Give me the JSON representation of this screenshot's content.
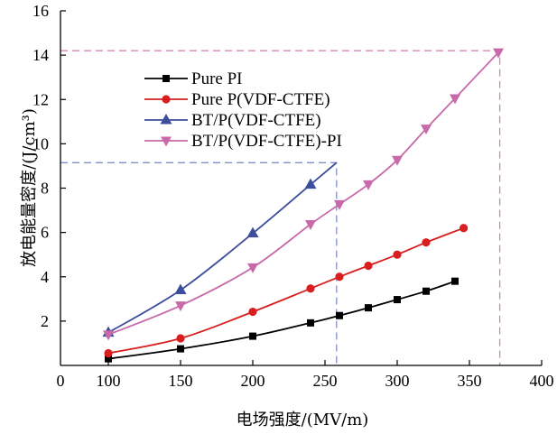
{
  "chart_data": {
    "type": "line",
    "title": "",
    "xlabel": "电场强度/(MV/m)",
    "ylabel": "放电能量密度/(J/cm³)",
    "xlim": [
      0,
      400
    ],
    "ylim": [
      0,
      16
    ],
    "xticks": [
      0,
      100,
      150,
      200,
      250,
      300,
      350,
      400
    ],
    "yticks": [
      2,
      4,
      6,
      8,
      10,
      12,
      14,
      16
    ],
    "grid": false,
    "legend": "top-left",
    "series": [
      {
        "name": "Pure PI",
        "color": "#000000",
        "marker": "square",
        "x": [
          100,
          150,
          200,
          240,
          260,
          280,
          300,
          320,
          340
        ],
        "y": [
          0.3,
          0.75,
          1.32,
          1.92,
          2.25,
          2.6,
          2.97,
          3.35,
          3.8
        ]
      },
      {
        "name": "Pure P(VDF-CTFE)",
        "color": "#d81e1e",
        "marker": "circle",
        "x": [
          100,
          150,
          200,
          240,
          260,
          280,
          300,
          320,
          346
        ],
        "y": [
          0.55,
          1.22,
          2.42,
          3.47,
          4.0,
          4.5,
          5.0,
          5.55,
          6.2
        ]
      },
      {
        "name": "BT/P(VDF-CTFE)",
        "color": "#3b4d9b",
        "marker": "triangle-up",
        "x": [
          100,
          150,
          200,
          240,
          258
        ],
        "y": [
          1.48,
          3.4,
          5.96,
          8.16,
          9.15
        ],
        "marked": [
          true,
          true,
          true,
          true,
          false
        ]
      },
      {
        "name": "BT/P(VDF-CTFE)-PI",
        "color": "#c86aa9",
        "marker": "triangle-down",
        "x": [
          100,
          150,
          200,
          240,
          260,
          280,
          300,
          320,
          340,
          370
        ],
        "y": [
          1.39,
          2.7,
          4.42,
          6.37,
          7.27,
          8.17,
          9.27,
          10.68,
          12.05,
          14.12
        ]
      }
    ],
    "guides": [
      {
        "x": 258,
        "y": 9.15,
        "color": "#7f90cc"
      },
      {
        "x": 371,
        "y": 14.2,
        "color": "#d684b6"
      }
    ]
  }
}
